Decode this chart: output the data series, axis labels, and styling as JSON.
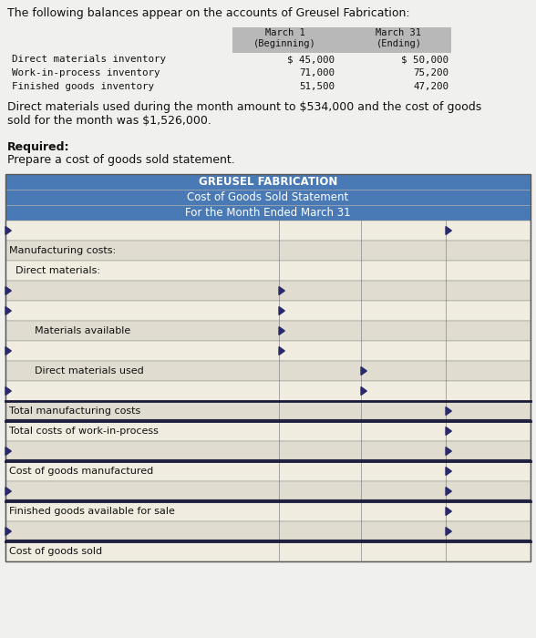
{
  "title_text": "The following balances appear on the accounts of Greusel Fabrication:",
  "col2_header": "March 1\n(Beginning)",
  "col3_header": "March 31\n(Ending)",
  "inventory_rows": [
    [
      "Direct materials inventory",
      "$ 45,000",
      "$ 50,000"
    ],
    [
      "Work-in-process inventory",
      "71,000",
      "75,200"
    ],
    [
      "Finished goods inventory",
      "51,500",
      "47,200"
    ]
  ],
  "description": "Direct materials used during the month amount to $534,000 and the cost of goods\nsold for the month was $1,526,000.",
  "required_label": "Required:",
  "required_desc": "Prepare a cost of goods sold statement.",
  "table_title1": "GREUSEL FABRICATION",
  "table_title2": "Cost of Goods Sold Statement",
  "table_title3": "For the Month Ended March 31",
  "table_header_bg": "#4a7ab5",
  "row_bg_light": "#f0ede0",
  "row_bg_mid": "#e0ddd0",
  "bg_color": "#f0f0ee",
  "text_color": "#111111",
  "arrow_color": "#2a2a6a",
  "table_rows": [
    {
      "label": "",
      "indent": 0,
      "arrows": {
        "left": true,
        "c1": false,
        "c2": false,
        "c3": true
      }
    },
    {
      "label": "Manufacturing costs:",
      "indent": 0,
      "arrows": {
        "left": false,
        "c1": false,
        "c2": false,
        "c3": false
      }
    },
    {
      "label": "  Direct materials:",
      "indent": 0,
      "arrows": {
        "left": false,
        "c1": false,
        "c2": false,
        "c3": false
      }
    },
    {
      "label": "",
      "indent": 0,
      "arrows": {
        "left": true,
        "c1": true,
        "c2": false,
        "c3": false
      }
    },
    {
      "label": "",
      "indent": 0,
      "arrows": {
        "left": true,
        "c1": true,
        "c2": false,
        "c3": false
      }
    },
    {
      "label": "        Materials available",
      "indent": 0,
      "arrows": {
        "left": false,
        "c1": true,
        "c2": false,
        "c3": false
      }
    },
    {
      "label": "",
      "indent": 0,
      "arrows": {
        "left": true,
        "c1": true,
        "c2": false,
        "c3": false
      }
    },
    {
      "label": "        Direct materials used",
      "indent": 0,
      "arrows": {
        "left": false,
        "c1": false,
        "c2": true,
        "c3": false
      }
    },
    {
      "label": "",
      "indent": 0,
      "arrows": {
        "left": true,
        "c1": false,
        "c2": true,
        "c3": false
      }
    },
    {
      "label": "Total manufacturing costs",
      "indent": 0,
      "arrows": {
        "left": false,
        "c1": false,
        "c2": false,
        "c3": true
      }
    },
    {
      "label": "Total costs of work-in-process",
      "indent": 0,
      "arrows": {
        "left": false,
        "c1": false,
        "c2": false,
        "c3": true
      }
    },
    {
      "label": "",
      "indent": 0,
      "arrows": {
        "left": true,
        "c1": false,
        "c2": false,
        "c3": true
      }
    },
    {
      "label": "Cost of goods manufactured",
      "indent": 0,
      "arrows": {
        "left": false,
        "c1": false,
        "c2": false,
        "c3": true
      }
    },
    {
      "label": "",
      "indent": 0,
      "arrows": {
        "left": true,
        "c1": false,
        "c2": false,
        "c3": true
      }
    },
    {
      "label": "Finished goods available for sale",
      "indent": 0,
      "arrows": {
        "left": false,
        "c1": false,
        "c2": false,
        "c3": true
      }
    },
    {
      "label": "",
      "indent": 0,
      "arrows": {
        "left": true,
        "c1": false,
        "c2": false,
        "c3": true
      }
    },
    {
      "label": "Cost of goods sold",
      "indent": 0,
      "arrows": {
        "left": false,
        "c1": false,
        "c2": false,
        "c3": false
      }
    }
  ],
  "thick_bottom_rows": [
    9,
    10,
    12,
    14,
    16
  ],
  "double_line_rows": [
    10,
    12,
    14,
    16
  ]
}
